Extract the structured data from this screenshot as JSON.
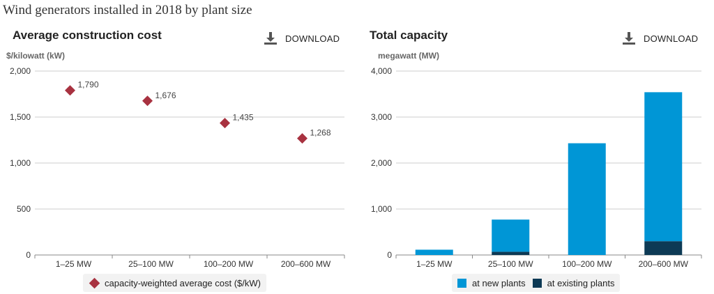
{
  "page": {
    "title": "Wind generators installed in 2018 by plant size"
  },
  "download_label": "DOWNLOAD",
  "chart_data": [
    {
      "type": "scatter",
      "title": "Average construction cost",
      "ylabel": "$/kilowatt (kW)",
      "categories": [
        "1–25 MW",
        "25–100 MW",
        "100–200 MW",
        "200–600 MW"
      ],
      "ylim": [
        0,
        2000
      ],
      "yticks": [
        0,
        500,
        1000,
        1500,
        2000
      ],
      "ytick_labels": [
        "0",
        "500",
        "1,000",
        "1,500",
        "2,000"
      ],
      "grid": true,
      "series": [
        {
          "name": "capacity-weighted average cost ($/kW)",
          "marker": "diamond",
          "color": "#a83240",
          "values": [
            1790,
            1676,
            1435,
            1268
          ],
          "labels": [
            "1,790",
            "1,676",
            "1,435",
            "1,268"
          ]
        }
      ],
      "legend": "bottom"
    },
    {
      "type": "bar",
      "stacked": true,
      "title": "Total capacity",
      "ylabel": "megawatt (MW)",
      "categories": [
        "1–25 MW",
        "25–100 MW",
        "100–200 MW",
        "200–600 MW"
      ],
      "ylim": [
        0,
        4000
      ],
      "yticks": [
        0,
        1000,
        2000,
        3000,
        4000
      ],
      "ytick_labels": [
        "0",
        "1,000",
        "2,000",
        "3,000",
        "4,000"
      ],
      "grid": true,
      "series": [
        {
          "name": "at existing plants",
          "color": "#0d3a55",
          "values": [
            0,
            70,
            0,
            300
          ]
        },
        {
          "name": "at new plants",
          "color": "#0096d6",
          "values": [
            115,
            700,
            2430,
            3240
          ]
        }
      ],
      "legend_order": [
        "at new plants",
        "at existing plants"
      ],
      "legend": "bottom"
    }
  ]
}
